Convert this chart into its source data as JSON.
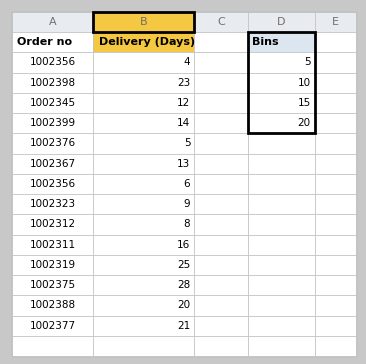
{
  "col_headers": [
    "A",
    "B",
    "C",
    "D",
    "E"
  ],
  "order_no": [
    1002356,
    1002398,
    1002345,
    1002399,
    1002376,
    1002367,
    1002356,
    1002323,
    1002312,
    1002311,
    1002319,
    1002375,
    1002388,
    1002377
  ],
  "delivery_days": [
    4,
    23,
    12,
    14,
    5,
    13,
    6,
    9,
    8,
    16,
    25,
    28,
    20,
    21
  ],
  "bins": [
    5,
    10,
    15,
    20
  ],
  "col_b_header_bg": "#f5c842",
  "col_d_header_bg": "#dce6f1",
  "grid_line_color": "#c0c0c0",
  "thick_border_color": "#000000",
  "outer_bg": "#c8c8c8",
  "cell_bg": "#ffffff",
  "col_letter_color": "#707070",
  "font_size": 7.5,
  "header_font_size": 8.0,
  "col_letter_font_size": 8.0
}
